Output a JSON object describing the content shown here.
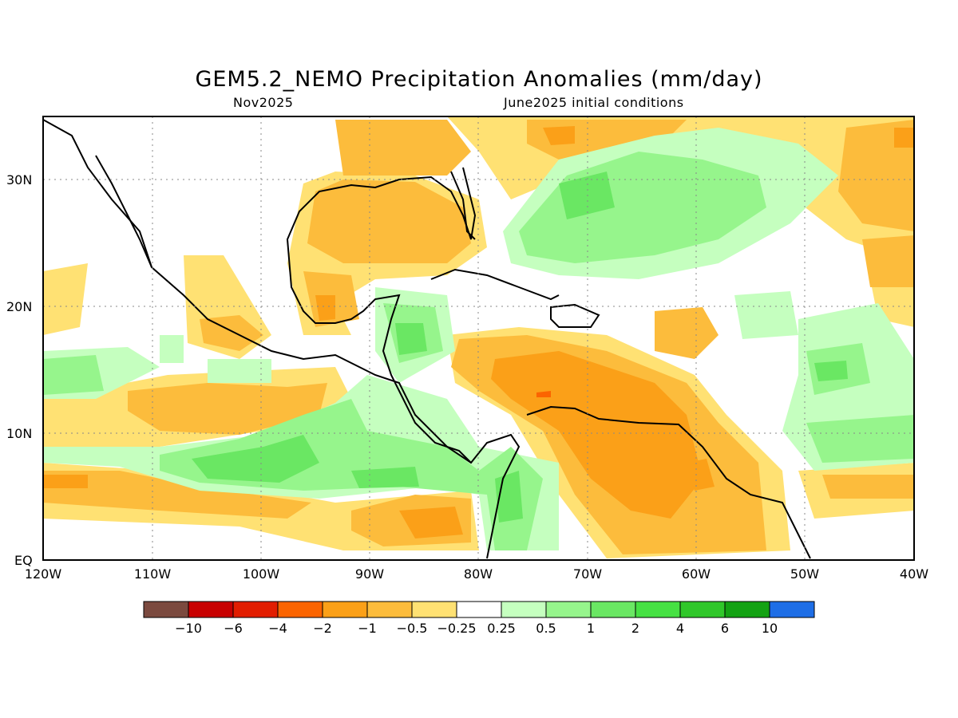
{
  "title": "GEM5.2_NEMO Precipitation Anomalies (mm/day)",
  "subtitle_left": "Nov2025",
  "subtitle_right": "June2025 initial conditions",
  "map": {
    "region": "Central America and Caribbean",
    "lon_range": [
      -120,
      -40
    ],
    "lat_range": [
      0,
      35
    ],
    "gridlines": "dotted",
    "x_ticks": [
      "120W",
      "110W",
      "100W",
      "90W",
      "80W",
      "70W",
      "60W",
      "50W",
      "40W"
    ],
    "y_ticks": [
      "EQ",
      "10N",
      "20N",
      "30N"
    ]
  },
  "colorbar": {
    "labels": [
      "-10",
      "-6",
      "-4",
      "-2",
      "-1",
      "-0.5",
      "-0.25",
      "0.25",
      "0.5",
      "1",
      "2",
      "4",
      "6",
      "10"
    ],
    "colors": [
      "#7b4a3f",
      "#c80000",
      "#e21d00",
      "#fb6400",
      "#fba018",
      "#fcbc3c",
      "#ffe173",
      "#ffffff",
      "#c5ffbf",
      "#96f58c",
      "#6ae763",
      "#46e143",
      "#30c72a",
      "#13a213",
      "#1e6ee6"
    ]
  }
}
